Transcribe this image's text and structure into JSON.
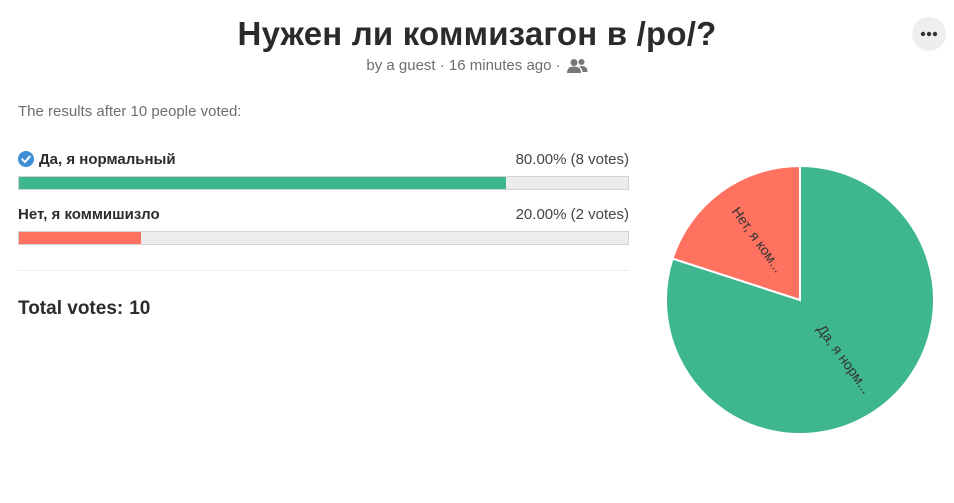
{
  "poll": {
    "title": "Нужен ли коммизагон в /po/?",
    "meta": "by a guest · 16 minutes ago ·",
    "meta_icon": "users-icon",
    "results_caption": "The results after 10 people voted:",
    "total_label": "Total votes:",
    "total_value": "10"
  },
  "options": [
    {
      "label": "Да, я нормальный",
      "value_text": "80.00% (8 votes)",
      "fraction": 0.8,
      "color": "#3fb78e",
      "selected": true,
      "pie_label": "Да, я норм..."
    },
    {
      "label": "Нет, я коммишизло",
      "value_text": "20.00% (2 votes)",
      "fraction": 0.2,
      "color": "#ff7260",
      "selected": false,
      "pie_label": "Нет, я ком..."
    }
  ],
  "colors": {
    "track": "#ececec",
    "check": "#3d8fd6"
  }
}
